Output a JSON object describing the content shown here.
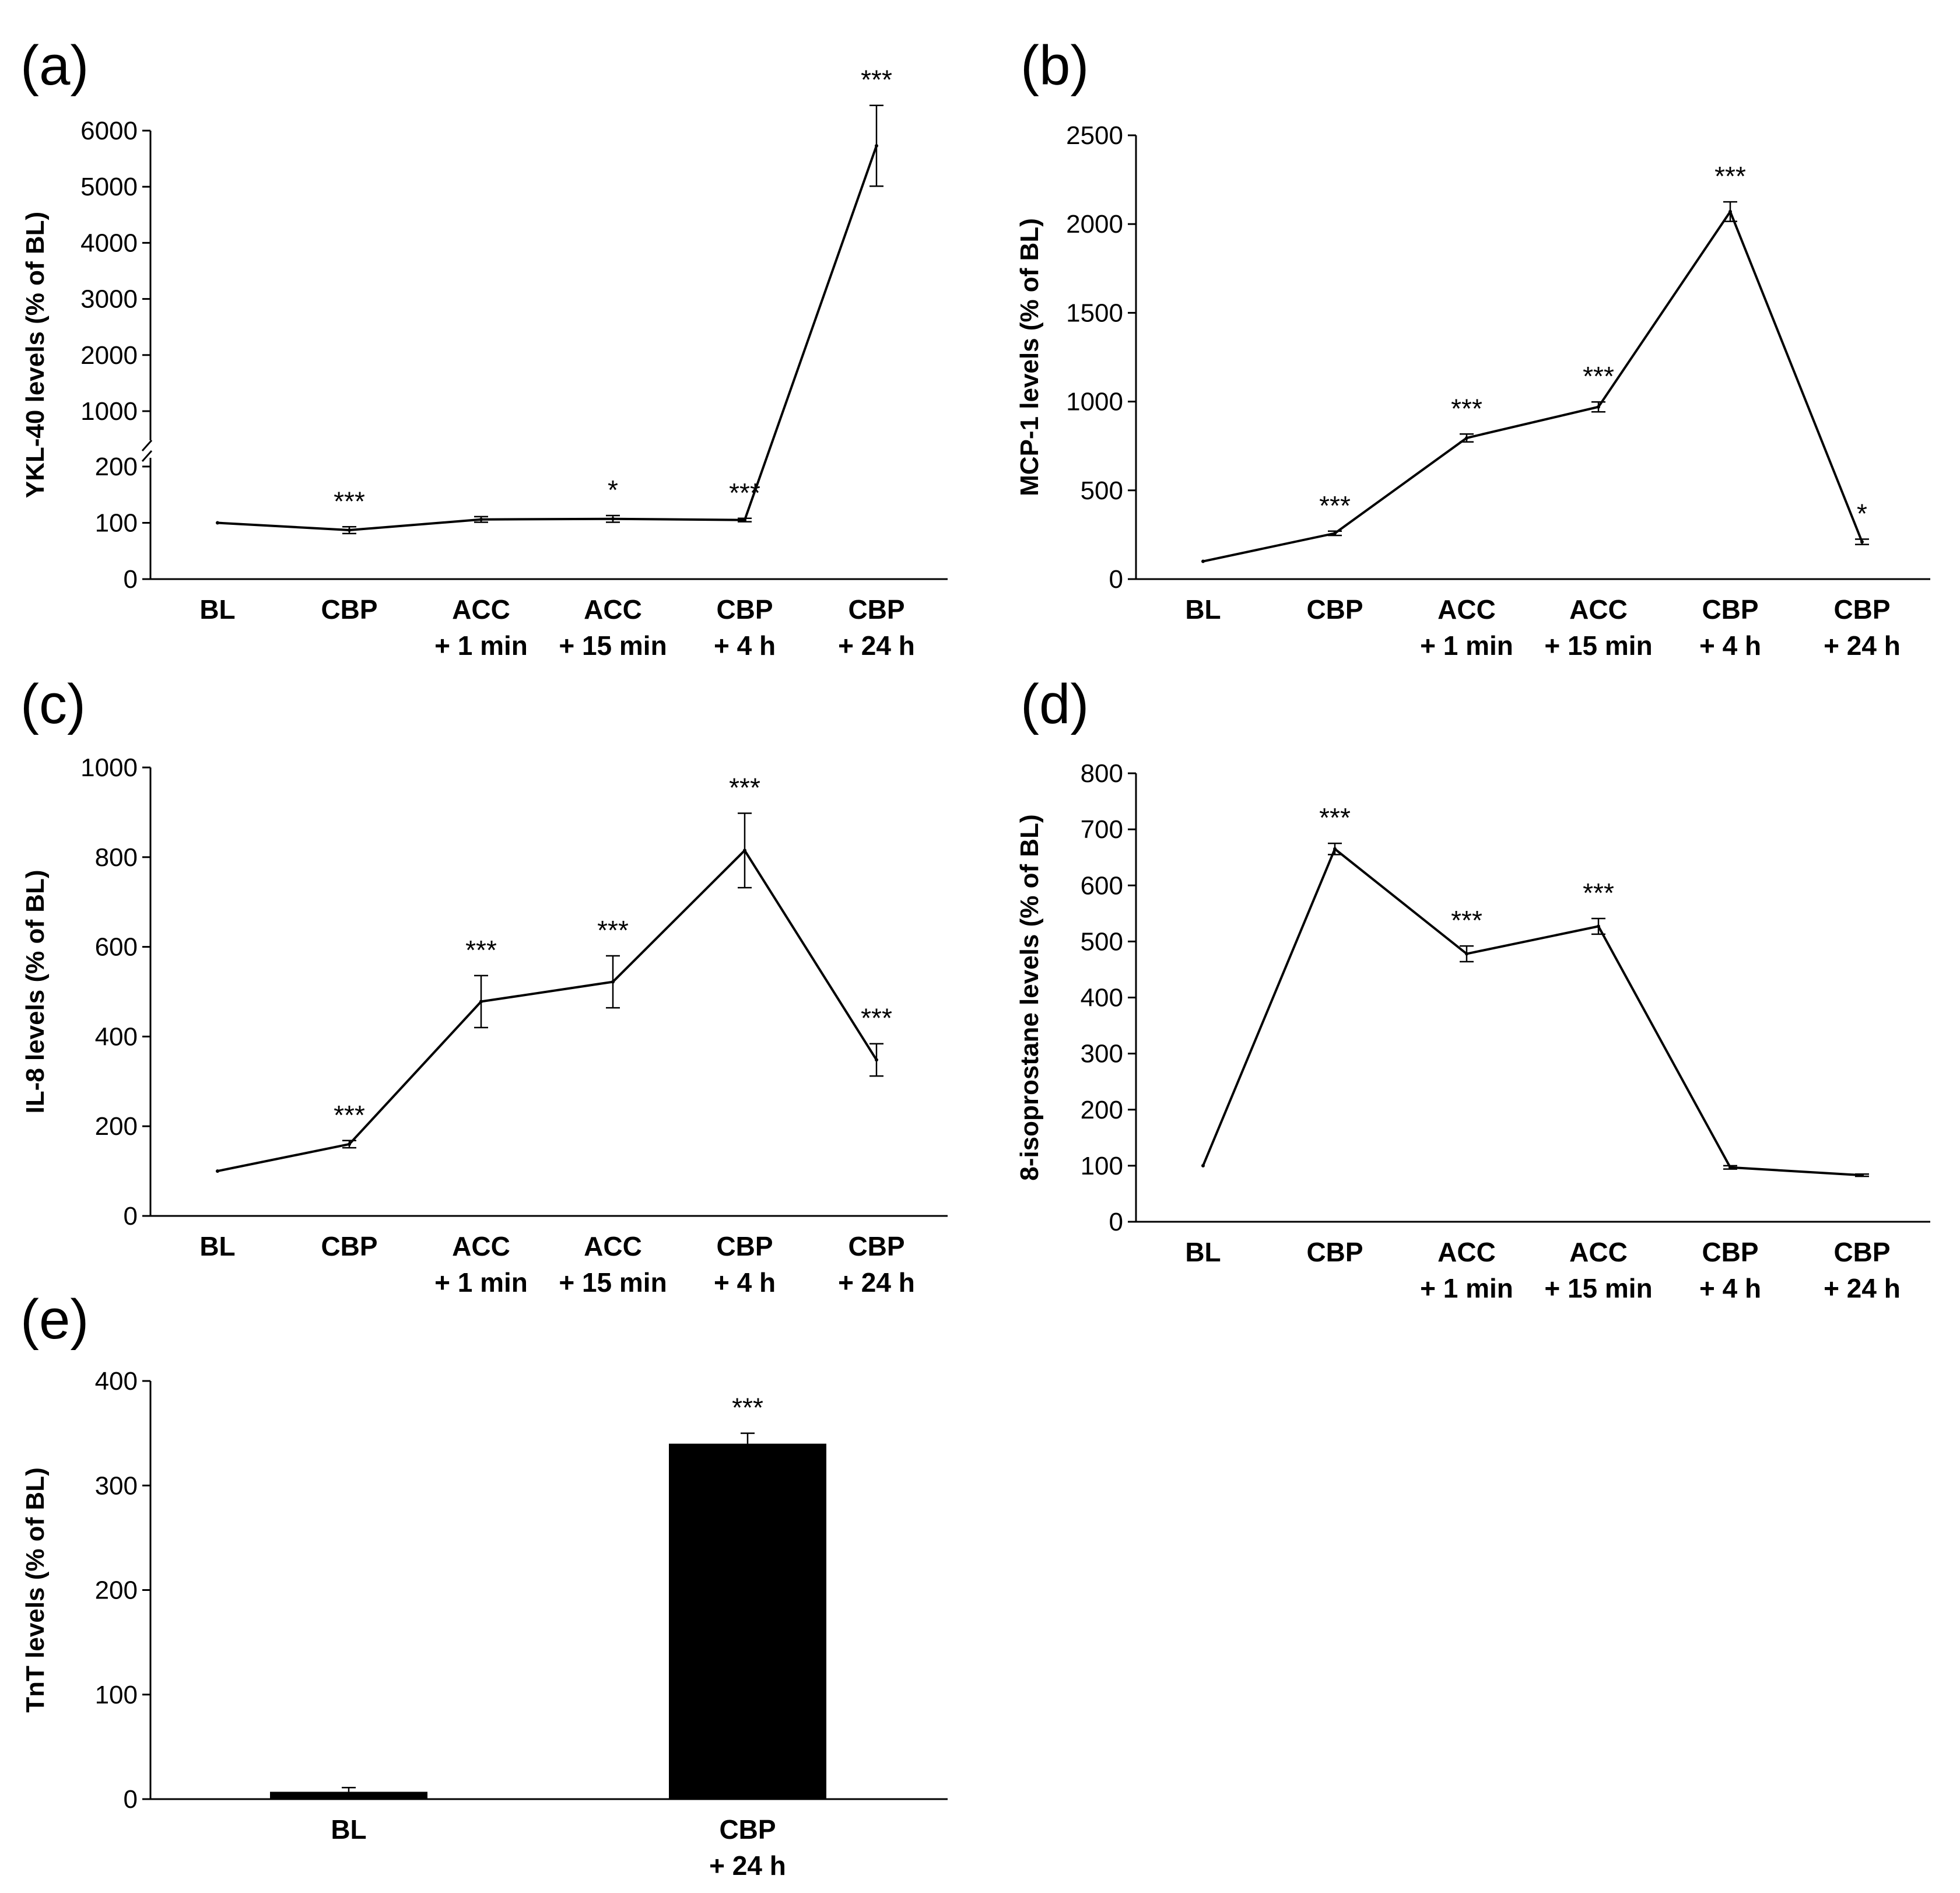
{
  "chart_data": [
    {
      "panel_label": "(a)",
      "type": "line",
      "ylabel": "YKL-40 levels (% of  BL)",
      "axis_break": true,
      "yticks_lower": [
        0,
        100,
        200
      ],
      "yticks_upper": [
        1000,
        2000,
        3000,
        4000,
        5000,
        6000
      ],
      "ylim_lower": [
        0,
        200
      ],
      "ylim_upper": [
        1000,
        6000
      ],
      "categories": [
        [
          "BL"
        ],
        [
          "CBP"
        ],
        [
          "ACC",
          "+ 1 min"
        ],
        [
          "ACC",
          "+ 15 min"
        ],
        [
          "CBP",
          "+ 4 h"
        ],
        [
          "CBP",
          "+ 24 h"
        ]
      ],
      "values": [
        100,
        87,
        106,
        107,
        105,
        5730
      ],
      "errors": [
        0,
        6,
        5,
        6,
        3,
        720
      ],
      "significance": [
        "",
        "***",
        "",
        "*",
        "***",
        "***"
      ]
    },
    {
      "panel_label": "(b)",
      "type": "line",
      "ylabel": "MCP-1 levels (% of  BL)",
      "yticks": [
        0,
        500,
        1000,
        1500,
        2000,
        2500
      ],
      "ylim": [
        0,
        2500
      ],
      "categories": [
        [
          "BL"
        ],
        [
          "CBP"
        ],
        [
          "ACC",
          "+ 1 min"
        ],
        [
          "ACC",
          "+ 15 min"
        ],
        [
          "CBP",
          "+ 4 h"
        ],
        [
          "CBP",
          "+ 24 h"
        ]
      ],
      "values": [
        100,
        258,
        795,
        970,
        2070,
        210
      ],
      "errors": [
        0,
        12,
        22,
        28,
        55,
        15
      ],
      "significance": [
        "",
        "***",
        "***",
        "***",
        "***",
        "*"
      ]
    },
    {
      "panel_label": "(c)",
      "type": "line",
      "ylabel": "IL-8 levels (% of BL)",
      "yticks": [
        0,
        200,
        400,
        600,
        800,
        1000
      ],
      "ylim": [
        0,
        1000
      ],
      "categories": [
        [
          "BL"
        ],
        [
          "CBP"
        ],
        [
          "ACC",
          "+ 1 min"
        ],
        [
          "ACC",
          "+ 15 min"
        ],
        [
          "CBP",
          "+ 4 h"
        ],
        [
          "CBP",
          "+ 24 h"
        ]
      ],
      "values": [
        100,
        160,
        478,
        522,
        815,
        348
      ],
      "errors": [
        0,
        8,
        58,
        58,
        83,
        36
      ],
      "significance": [
        "",
        "***",
        "***",
        "***",
        "***",
        "***"
      ]
    },
    {
      "panel_label": "(d)",
      "type": "line",
      "ylabel": "8-isoprostane levels  (% of BL)",
      "yticks": [
        0,
        100,
        200,
        300,
        400,
        500,
        600,
        700,
        800
      ],
      "ylim": [
        0,
        800
      ],
      "categories": [
        [
          "BL"
        ],
        [
          "CBP"
        ],
        [
          "ACC",
          "+ 1 min"
        ],
        [
          "ACC",
          "+ 15 min"
        ],
        [
          "CBP",
          "+ 4 h"
        ],
        [
          "CBP",
          "+ 24 h"
        ]
      ],
      "values": [
        100,
        665,
        478,
        527,
        97,
        83
      ],
      "errors": [
        0,
        10,
        14,
        14,
        3,
        2
      ],
      "significance": [
        "",
        "***",
        "***",
        "***",
        "",
        ""
      ]
    },
    {
      "panel_label": "(e)",
      "type": "bar",
      "ylabel": "TnT levels (% of BL)",
      "yticks": [
        0,
        100,
        200,
        300,
        400
      ],
      "ylim": [
        0,
        400
      ],
      "categories": [
        [
          "BL"
        ],
        [
          "CBP",
          "+ 24 h"
        ]
      ],
      "values": [
        7,
        340
      ],
      "errors": [
        4,
        10
      ],
      "significance": [
        "",
        "***"
      ]
    }
  ]
}
